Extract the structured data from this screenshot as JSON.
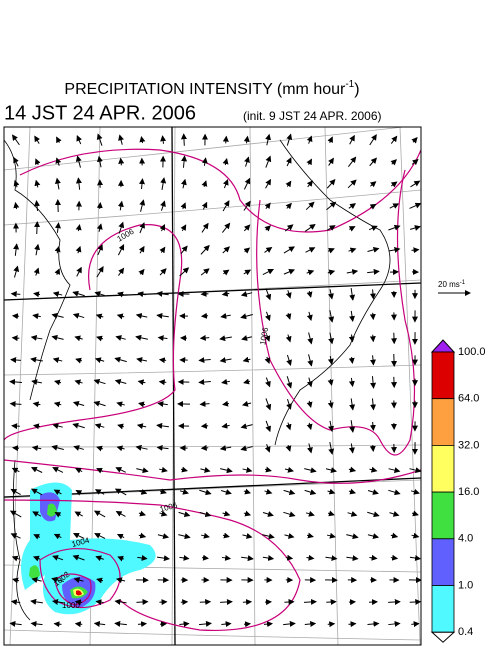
{
  "header": {
    "title": "PRECIPITATION INTENSITY (mm hour",
    "title_sup": "-1",
    "title_end": ")",
    "valid_time": "14 JST 24 APR. 2006",
    "init_time": "(init. 9 JST 24 APR. 2006)"
  },
  "reference_vector": {
    "label": "20 ms",
    "label_sup": "-1"
  },
  "colorbar": {
    "labels": [
      "100.0",
      "64.0",
      "32.0",
      "16.0",
      "4.0",
      "1.0",
      "0.4"
    ],
    "colors": [
      "#dc0000",
      "#ffa040",
      "#ffff60",
      "#40e040",
      "#6060ff",
      "#50f8ff"
    ],
    "over_color": "#a020f0",
    "under_color": "#ffffff"
  },
  "contour_labels": [
    "1006",
    "1006",
    "1006",
    "1004",
    "1002",
    "1000"
  ]
}
